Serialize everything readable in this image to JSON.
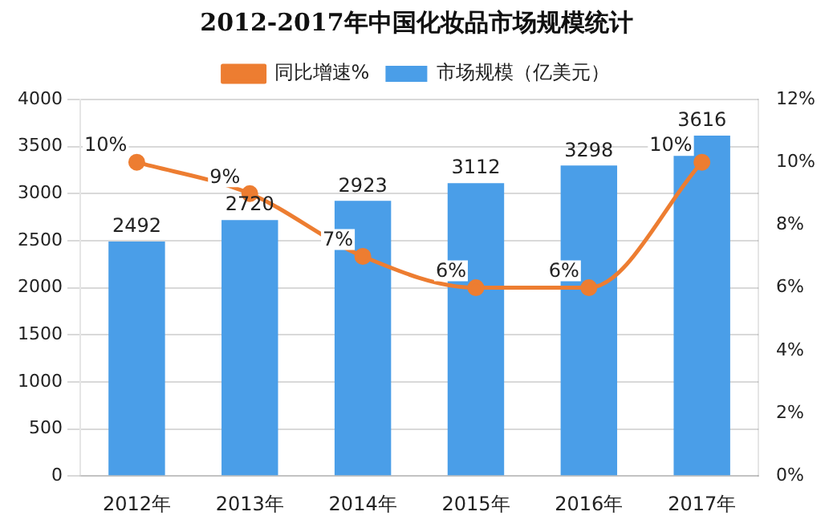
{
  "chart_data": {
    "type": "bar",
    "title": "2012-2017年中国化妆品市场规模统计",
    "categories": [
      "2012年",
      "2013年",
      "2014年",
      "2015年",
      "2016年",
      "2017年"
    ],
    "series": [
      {
        "name": "市场规模（亿美元）",
        "color": "#4a9ee8",
        "values": [
          2492,
          2720,
          2923,
          3112,
          3298,
          3616
        ],
        "value_labels": [
          "2492",
          "2720",
          "2923",
          "3112",
          "3298",
          "3616"
        ]
      },
      {
        "name": "同比增速%",
        "type": "line",
        "axis": "y2",
        "color": "#ed7d31",
        "marker": "circle",
        "values": [
          10,
          9,
          7,
          6,
          6,
          10
        ],
        "value_labels": [
          "10%",
          "9%",
          "7%",
          "6%",
          "6%",
          "10%"
        ]
      }
    ],
    "ylim": [
      0,
      4000
    ],
    "yticks": [
      0,
      500,
      1000,
      1500,
      2000,
      2500,
      3000,
      3500,
      4000
    ],
    "y2lim": [
      0,
      12
    ],
    "y2ticks": [
      {
        "value": 0,
        "label": "0%"
      },
      {
        "value": 2,
        "label": "2%"
      },
      {
        "value": 4,
        "label": "4%"
      },
      {
        "value": 6,
        "label": "6%"
      },
      {
        "value": 8,
        "label": "8%"
      },
      {
        "value": 10,
        "label": "10%"
      },
      {
        "value": 12,
        "label": "12%"
      }
    ],
    "grid": "y",
    "legend": "top"
  }
}
